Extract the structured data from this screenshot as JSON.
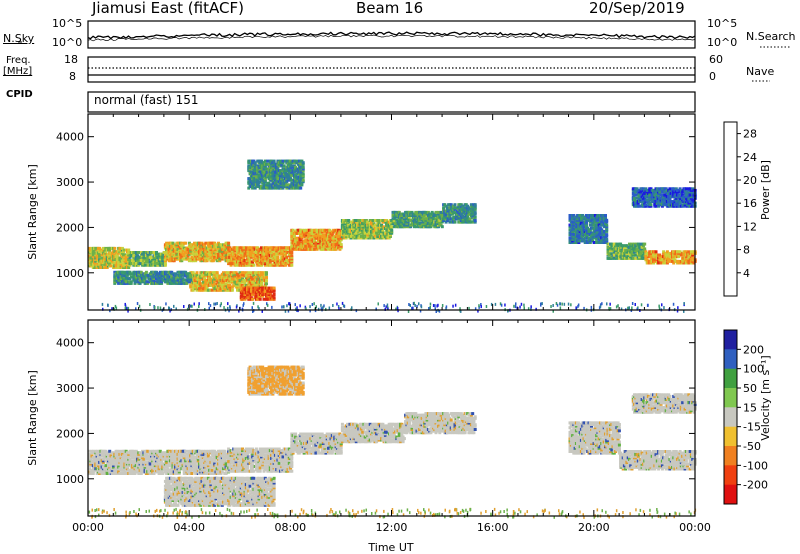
{
  "header": {
    "station": "Jiamusi East (fitACF)",
    "beam": "Beam 16",
    "date": "20/Sep/2019"
  },
  "summary": {
    "nsky_label": "N.Sky",
    "nsky_ticks": [
      "10^5",
      "10^0"
    ],
    "nsearch_label": "N.Search",
    "nsearch_ticks": [
      "10^5",
      "10^0"
    ],
    "freq_label_top": "Freq.",
    "freq_label_bottom": "[MHz]",
    "freq_ticks": [
      "18",
      "8"
    ],
    "nave_label": "Nave",
    "nave_ticks": [
      "60",
      "0"
    ],
    "cpid_label": "CPID",
    "cpid_text": "normal (fast) 151"
  },
  "chart_data": [
    {
      "type": "heatmap",
      "panel": "power",
      "ylabel": "Slant Range [km]",
      "ylim": [
        180,
        4500
      ],
      "y_ticks": [
        1000,
        2000,
        3000,
        4000
      ],
      "xlim": [
        0,
        24
      ],
      "colorbar": {
        "label": "Power [dB]",
        "ticks": [
          4,
          8,
          12,
          16,
          20,
          24,
          28
        ],
        "range": [
          0,
          30
        ]
      },
      "bands": [
        {
          "x": [
            0.0,
            1.6
          ],
          "y": [
            1150,
            1600
          ],
          "value": 18
        },
        {
          "x": [
            1.6,
            3.0
          ],
          "y": [
            1200,
            1500
          ],
          "value": 14
        },
        {
          "x": [
            3.0,
            5.5
          ],
          "y": [
            1300,
            1700
          ],
          "value": 20
        },
        {
          "x": [
            5.5,
            8.0
          ],
          "y": [
            1200,
            1600
          ],
          "value": 22
        },
        {
          "x": [
            8.0,
            10.0
          ],
          "y": [
            1550,
            2000
          ],
          "value": 22
        },
        {
          "x": [
            10.0,
            12.0
          ],
          "y": [
            1800,
            2200
          ],
          "value": 16
        },
        {
          "x": [
            12.0,
            14.0
          ],
          "y": [
            2050,
            2400
          ],
          "value": 12
        },
        {
          "x": [
            14.0,
            15.3
          ],
          "y": [
            2150,
            2550
          ],
          "value": 10
        },
        {
          "x": [
            4.0,
            7.0
          ],
          "y": [
            650,
            1050
          ],
          "value": 20
        },
        {
          "x": [
            6.0,
            7.3
          ],
          "y": [
            450,
            700
          ],
          "value": 26
        },
        {
          "x": [
            1.0,
            4.0
          ],
          "y": [
            800,
            1050
          ],
          "value": 10
        },
        {
          "x": [
            6.3,
            8.5
          ],
          "y": [
            2900,
            3500
          ],
          "value": 10
        },
        {
          "x": [
            19.0,
            20.5
          ],
          "y": [
            1700,
            2300
          ],
          "value": 8
        },
        {
          "x": [
            20.5,
            22.0
          ],
          "y": [
            1350,
            1700
          ],
          "value": 14
        },
        {
          "x": [
            22.0,
            24.0
          ],
          "y": [
            1250,
            1500
          ],
          "value": 22
        },
        {
          "x": [
            21.5,
            24.0
          ],
          "y": [
            2500,
            2900
          ],
          "value": 6
        }
      ]
    },
    {
      "type": "heatmap",
      "panel": "velocity",
      "ylabel": "Slant Range [km]",
      "ylim": [
        180,
        4500
      ],
      "y_ticks": [
        1000,
        2000,
        3000,
        4000
      ],
      "xlim": [
        0,
        24
      ],
      "xlabel": "Time UT",
      "x_ticks": [
        "00:00",
        "04:00",
        "08:00",
        "12:00",
        "16:00",
        "20:00",
        "00:00"
      ],
      "colorbar": {
        "label": "Velocity [m s⁻¹]",
        "ticks": [
          "200",
          "100",
          "50",
          "15",
          "-15",
          "-50",
          "-100",
          "-200"
        ]
      },
      "bands": [
        {
          "x": [
            0.0,
            5.5
          ],
          "y": [
            1150,
            1650
          ],
          "value": 0
        },
        {
          "x": [
            5.5,
            8.0
          ],
          "y": [
            1200,
            1700
          ],
          "value": 0
        },
        {
          "x": [
            8.0,
            10.0
          ],
          "y": [
            1600,
            2050
          ],
          "value": 0
        },
        {
          "x": [
            10.0,
            12.5
          ],
          "y": [
            1850,
            2250
          ],
          "value": 0
        },
        {
          "x": [
            12.5,
            15.3
          ],
          "y": [
            2050,
            2500
          ],
          "value": 0
        },
        {
          "x": [
            3.0,
            7.3
          ],
          "y": [
            450,
            1050
          ],
          "value": 0
        },
        {
          "x": [
            6.3,
            8.5
          ],
          "y": [
            2900,
            3500
          ],
          "value": -40
        },
        {
          "x": [
            19.0,
            21.0
          ],
          "y": [
            1600,
            2300
          ],
          "value": 0
        },
        {
          "x": [
            21.0,
            24.0
          ],
          "y": [
            1250,
            1650
          ],
          "value": 0
        },
        {
          "x": [
            21.5,
            24.0
          ],
          "y": [
            2500,
            2900
          ],
          "value": 0
        }
      ]
    }
  ]
}
